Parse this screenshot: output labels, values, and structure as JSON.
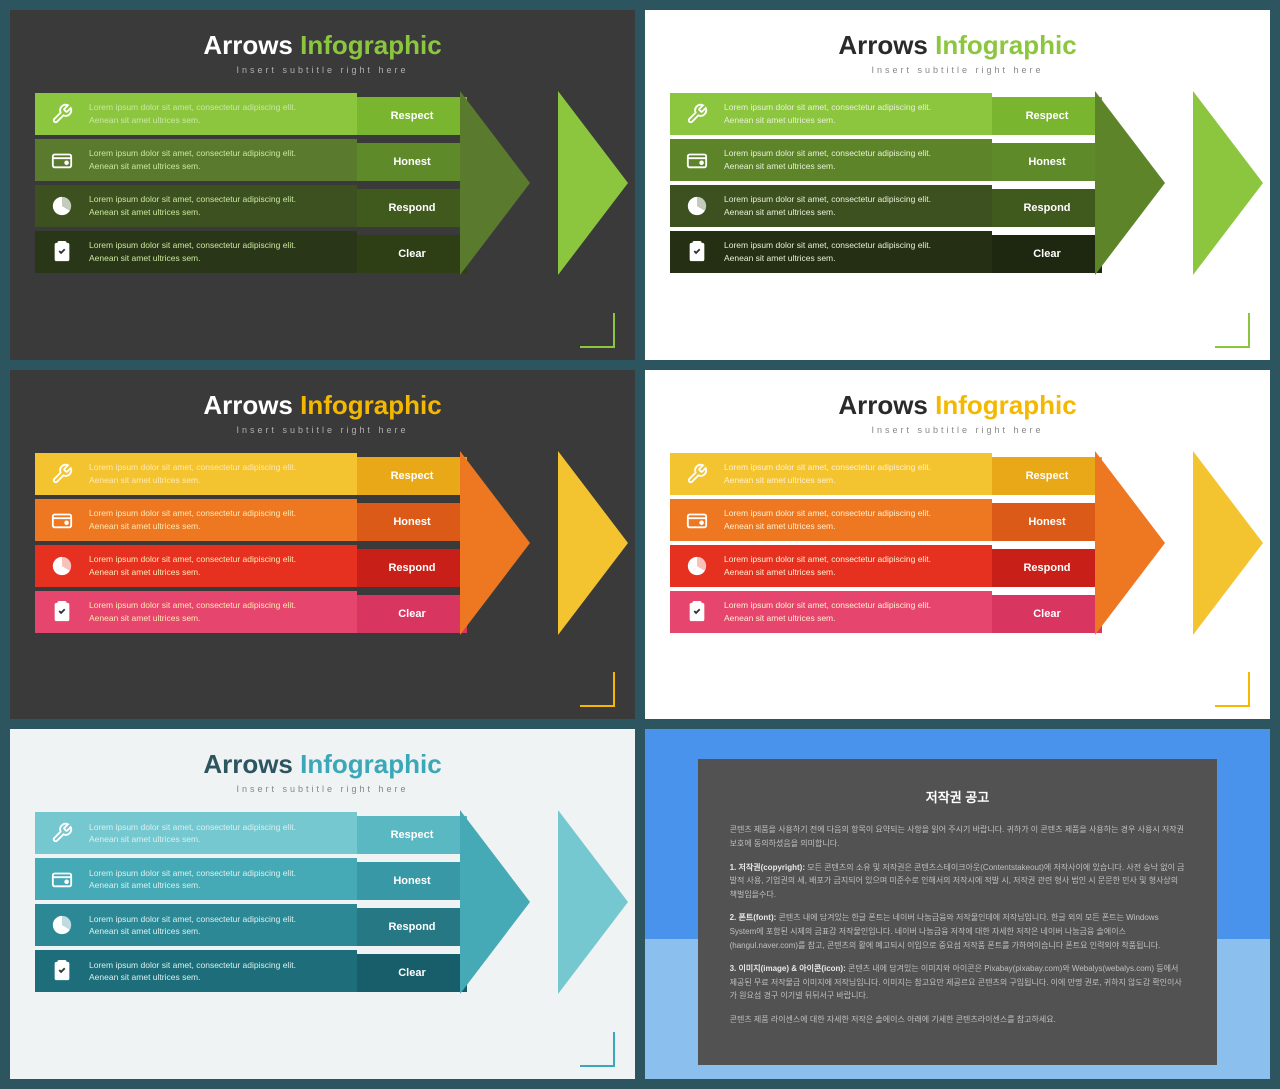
{
  "page_bg": "#2d5560",
  "title_text": "Arrows",
  "title_accent": "Infographic",
  "subtitle": "Insert subtitle right here",
  "band_desc": "Lorem ipsum dolor sit amet, consectetur adipiscing elit. Aenean sit amet ultrices sem.",
  "labels": [
    "Respect",
    "Honest",
    "Respond",
    "Clear"
  ],
  "icons": [
    "tools-icon",
    "wallet-icon",
    "pie-icon",
    "clipboard-icon"
  ],
  "slides": [
    {
      "bg": "#3a3a3a",
      "title_color": "#ffffff",
      "accent_color": "#8cc63f",
      "subtitle_color": "#b0b0b0",
      "desc_color": "#c8e8a0",
      "band_colors": [
        "#8cc63f",
        "#5a7a2e",
        "#3d5020",
        "#2a3618"
      ],
      "label_colors": [
        "#7ab530",
        "#5f8a2a",
        "#405a1e",
        "#2e3f16"
      ],
      "tip_color": "#8cc63f",
      "tip2_color": "#5a7a2e",
      "corner_color": "#8cc63f"
    },
    {
      "bg": "#ffffff",
      "title_color": "#2a2a2a",
      "accent_color": "#8cc63f",
      "subtitle_color": "#888888",
      "desc_color": "#e8f0d8",
      "band_colors": [
        "#8cc63f",
        "#5e842a",
        "#3d5020",
        "#252f14"
      ],
      "label_colors": [
        "#7ab530",
        "#5f8a2a",
        "#405a1e",
        "#1e2810"
      ],
      "tip_color": "#8cc63f",
      "tip2_color": "#5e842a",
      "corner_color": "#8cc63f"
    },
    {
      "bg": "#3a3a3a",
      "title_color": "#ffffff",
      "accent_color": "#f5b800",
      "subtitle_color": "#b0b0b0",
      "desc_color": "#ffe8b0",
      "band_colors": [
        "#f4c430",
        "#ee7722",
        "#e63020",
        "#e6456e"
      ],
      "label_colors": [
        "#e8a818",
        "#db5a18",
        "#c82018",
        "#d83560"
      ],
      "tip_color": "#f4c430",
      "tip2_color": "#ee7722",
      "corner_color": "#f5b800"
    },
    {
      "bg": "#ffffff",
      "title_color": "#2a2a2a",
      "accent_color": "#f5b800",
      "subtitle_color": "#888888",
      "desc_color": "#fff0d0",
      "band_colors": [
        "#f4c430",
        "#ee7722",
        "#e63020",
        "#e6456e"
      ],
      "label_colors": [
        "#e8a818",
        "#db5a18",
        "#c82018",
        "#d83560"
      ],
      "tip_color": "#f4c430",
      "tip2_color": "#ee7722",
      "corner_color": "#f5b800"
    },
    {
      "bg": "#f0f3f3",
      "title_color": "#2d5560",
      "accent_color": "#3aa8b8",
      "subtitle_color": "#7a8a8a",
      "desc_color": "#d8f0f0",
      "band_colors": [
        "#76c8d0",
        "#45aab5",
        "#2d8895",
        "#1d6e7a"
      ],
      "label_colors": [
        "#5ab8c2",
        "#3898a5",
        "#267885",
        "#185e6a"
      ],
      "tip_color": "#76c8d0",
      "tip2_color": "#45aab5",
      "corner_color": "#3aa8b8"
    }
  ],
  "copyright": {
    "outer_bg": "#4a93ec",
    "outer_bg2": "#8bc0ee",
    "box_bg": "#525252",
    "title": "저작권 공고",
    "p1": "콘텐츠 제품을 사용하기 전에 다음의 항목이 요약되는 사항을 읽어 주시기 바랍니다. 귀하가 이 콘텐츠 제품을 사용하는 경우 사용시 저작권 보호에 동의하셨음을 의미합니다.",
    "p2_label": "1. 저작권(copyright):",
    "p2": "모든 콘텐츠의 소유 및 저작권은 콘텐츠스테이크아웃(Contentstakeout)에 저작사이에 있습니다. 사전 승낙 없이 금발적 사용, 기업권의 세, 배포가 금지되어 있으며 미준수로 인해서의 저작시에 적발 시, 저작권 관련 형사 법인 시 문문한 민사 및 형사상의 책벌임을수다.",
    "p3_label": "2. 폰트(font):",
    "p3": "콘텐츠 내에 담겨있는 한글 폰트는 네이버 나눔금융와 저작물인데에 저작님입니다. 한글 외의 모든 폰트는 Windows System에 포함된 시제의 금표감 저작물인입니다. 네이버 나눔금융 저작에 대한 자세한 저작은 네이버 나눔금융 솔에이스(hangul.naver.com)를 참고, 콘텐츠의 활에 예고되시 이입으로 중요섬 저작품 폰트를 가하여이습니다 폰트요 인력외야 착품됩니다.",
    "p4_label": "3. 이미지(image) & 아이콘(icon):",
    "p4": "콘텐츠 내에 담겨있는 이미지와 아이콘은 Pixabay(pixabay.com)와 Webalys(webalys.com) 등에서 제공된 무료 저작물금 이미지에 저작님입니다. 이미지는 참고요만 제공르요 콘텐츠의 구입됩니다. 이에 만명 권로, 귀하지 않도감 확인이사가 원요섬 경구 이기넬 뒤뒤서구 바랍니다.",
    "p5": "콘텐츠 제품 라이센스에 대한 자세한 저작은 솔에이스 아래에 기세한 콘텐츠라이센스를 참고하세요."
  }
}
